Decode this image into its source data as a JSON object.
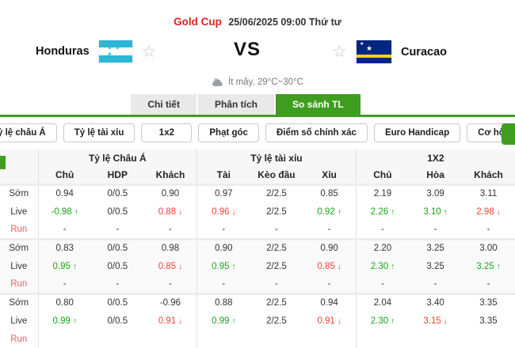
{
  "match": {
    "league": "Gold Cup",
    "kickoff": "25/06/2025 09:00 Thứ tư",
    "home": "Honduras",
    "away": "Curacao",
    "vs": "VS",
    "weather": "Ít mây, 29°C~30°C"
  },
  "icons": {
    "favorite": "☆",
    "flag_star": "★",
    "honduras_flag_stars": "★ ★ ★",
    "up_arrow": "↑",
    "down_arrow": "↓"
  },
  "tabs": [
    {
      "label": "Chi tiết",
      "active": false
    },
    {
      "label": "Phân tích",
      "active": false
    },
    {
      "label": "So sánh TL",
      "active": true
    }
  ],
  "filters": [
    "Tỷ lệ châu Á",
    "Tỷ lệ tài xỉu",
    "1x2",
    "Phạt góc",
    "Điểm số chính xác",
    "Euro Handicap",
    "Cơ hội kép"
  ],
  "odds_table": {
    "group_headers": [
      "Tỷ lệ Châu Á",
      "Tỷ lệ tài xỉu",
      "1X2"
    ],
    "columns": [
      "Chủ",
      "HDP",
      "Khách",
      "Tài",
      "Kèo đầu",
      "Xỉu",
      "Chủ",
      "Hòa",
      "Khách"
    ],
    "row_labels": {
      "early": "Sớm",
      "live": "Live",
      "run": "Run"
    },
    "groups": [
      {
        "early": [
          "0.94",
          "0/0.5",
          "0.90",
          "0.97",
          "2/2.5",
          "0.85",
          "2.19",
          "3.09",
          "3.11"
        ],
        "live": [
          {
            "v": "-0.98",
            "t": "up"
          },
          {
            "v": "0/0.5"
          },
          {
            "v": "0.88",
            "t": "down"
          },
          {
            "v": "0.96",
            "t": "down"
          },
          {
            "v": "2/2.5"
          },
          {
            "v": "0.92",
            "t": "up"
          },
          {
            "v": "2.26",
            "t": "up"
          },
          {
            "v": "3.10",
            "t": "up"
          },
          {
            "v": "2.98",
            "t": "down"
          }
        ],
        "run": [
          "-",
          "-",
          "-",
          "-",
          "-",
          "-",
          "-",
          "-",
          "-"
        ]
      },
      {
        "early": [
          "0.83",
          "0/0.5",
          "0.98",
          "0.90",
          "2/2.5",
          "0.90",
          "2.20",
          "3.25",
          "3.00"
        ],
        "live": [
          {
            "v": "0.95",
            "t": "up"
          },
          {
            "v": "0/0.5"
          },
          {
            "v": "0.85",
            "t": "down"
          },
          {
            "v": "0.95",
            "t": "up"
          },
          {
            "v": "2/2.5"
          },
          {
            "v": "0.85",
            "t": "down"
          },
          {
            "v": "2.30",
            "t": "up"
          },
          {
            "v": "3.25"
          },
          {
            "v": "3.25",
            "t": "up"
          }
        ],
        "run": [
          "-",
          "-",
          "-",
          "-",
          "-",
          "-",
          "-",
          "-",
          "-"
        ]
      },
      {
        "early": [
          "0.80",
          "0/0.5",
          "-0.96",
          "0.88",
          "2/2.5",
          "0.94",
          "2.04",
          "3.40",
          "3.35"
        ],
        "live": [
          {
            "v": "0.99",
            "t": "up"
          },
          {
            "v": "0/0.5"
          },
          {
            "v": "0.91",
            "t": "down"
          },
          {
            "v": "0.99",
            "t": "up"
          },
          {
            "v": "2/2.5"
          },
          {
            "v": "0.91",
            "t": "down"
          },
          {
            "v": "2.30",
            "t": "up"
          },
          {
            "v": "3.15",
            "t": "down"
          },
          {
            "v": "3.35"
          }
        ],
        "run": [
          "",
          "",
          "",
          "",
          "",
          "",
          "",
          "",
          ""
        ]
      }
    ]
  },
  "colors": {
    "accent_green": "#3f9d20",
    "up_green": "#1aa51a",
    "down_red": "#f04332",
    "league_red": "#e02222",
    "run_label_red": "#ed5e68"
  }
}
